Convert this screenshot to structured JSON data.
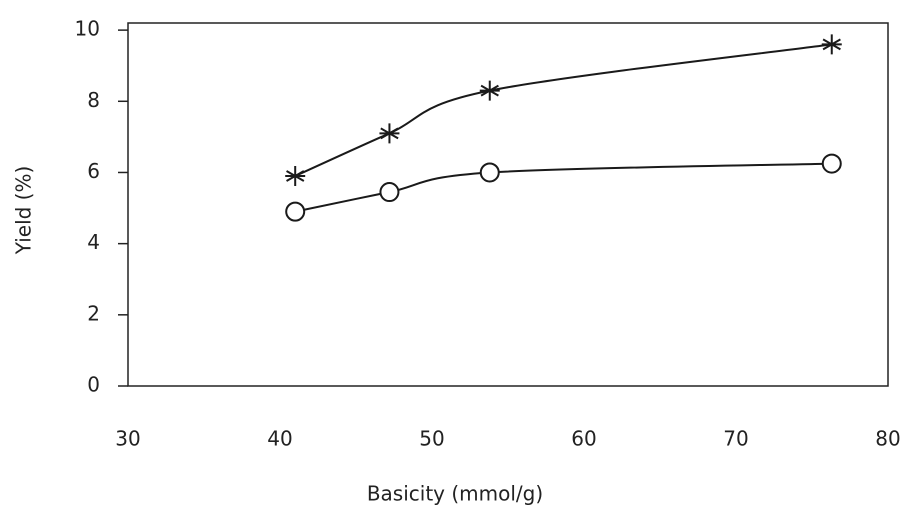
{
  "chart_data": {
    "type": "scatter",
    "x_label": "Basicity (mmol/g)",
    "y_label": "Yield (%)",
    "xlim": [
      30,
      80
    ],
    "xticks": [
      30,
      40,
      50,
      60,
      70,
      80
    ],
    "ylim": [
      0,
      10.2
    ],
    "yticks": [
      0,
      2,
      4,
      6,
      8,
      10
    ],
    "series": [
      {
        "marker": "star",
        "color": "#1a1a1a",
        "x": [
          41,
          47.2,
          53.8,
          76.3
        ],
        "values": [
          5.9,
          7.1,
          8.3,
          9.6
        ]
      },
      {
        "marker": "circle",
        "color": "#1a1a1a",
        "x": [
          41,
          47.2,
          53.8,
          76.3
        ],
        "values": [
          4.9,
          5.45,
          6.0,
          6.25
        ]
      }
    ]
  }
}
